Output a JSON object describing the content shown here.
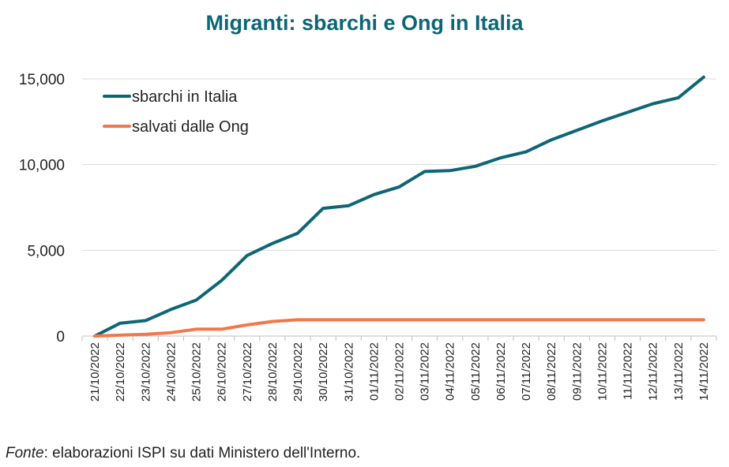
{
  "chart_data": {
    "type": "line",
    "title": "Migranti: sbarchi e Ong in Italia",
    "xlabel": "",
    "ylabel": "",
    "ylim": [
      0,
      15000
    ],
    "yticks": [
      "0",
      "5,000",
      "10,000",
      "15,000"
    ],
    "ytick_values": [
      0,
      5000,
      10000,
      15000
    ],
    "grid": true,
    "legend_position": "top-left",
    "categories": [
      "21/10/2022",
      "22/10/2022",
      "23/10/2022",
      "24/10/2022",
      "25/10/2022",
      "26/10/2022",
      "27/10/2022",
      "28/10/2022",
      "29/10/2022",
      "30/10/2022",
      "31/10/2022",
      "01/11/2022",
      "02/11/2022",
      "03/11/2022",
      "04/11/2022",
      "05/11/2022",
      "06/11/2022",
      "07/11/2022",
      "08/11/2022",
      "09/11/2022",
      "10/11/2022",
      "11/11/2022",
      "12/11/2022",
      "13/11/2022",
      "14/11/2022"
    ],
    "series": [
      {
        "name": "sbarchi in Italia",
        "color": "#0e6675",
        "values": [
          0,
          750,
          900,
          1550,
          2100,
          3250,
          4700,
          5400,
          6000,
          7450,
          7600,
          8250,
          8700,
          9600,
          9650,
          9900,
          10400,
          10750,
          11450,
          12000,
          12550,
          13050,
          13550,
          13900,
          15100
        ]
      },
      {
        "name": "salvati dalle Ong",
        "color": "#f4774b",
        "values": [
          0,
          50,
          100,
          200,
          400,
          400,
          650,
          850,
          950,
          950,
          950,
          950,
          950,
          950,
          950,
          950,
          950,
          950,
          950,
          950,
          950,
          950,
          950,
          950,
          950
        ]
      }
    ]
  },
  "source": {
    "label": "Fonte",
    "text": ": elaborazioni ISPI su dati Ministero dell'Interno."
  }
}
